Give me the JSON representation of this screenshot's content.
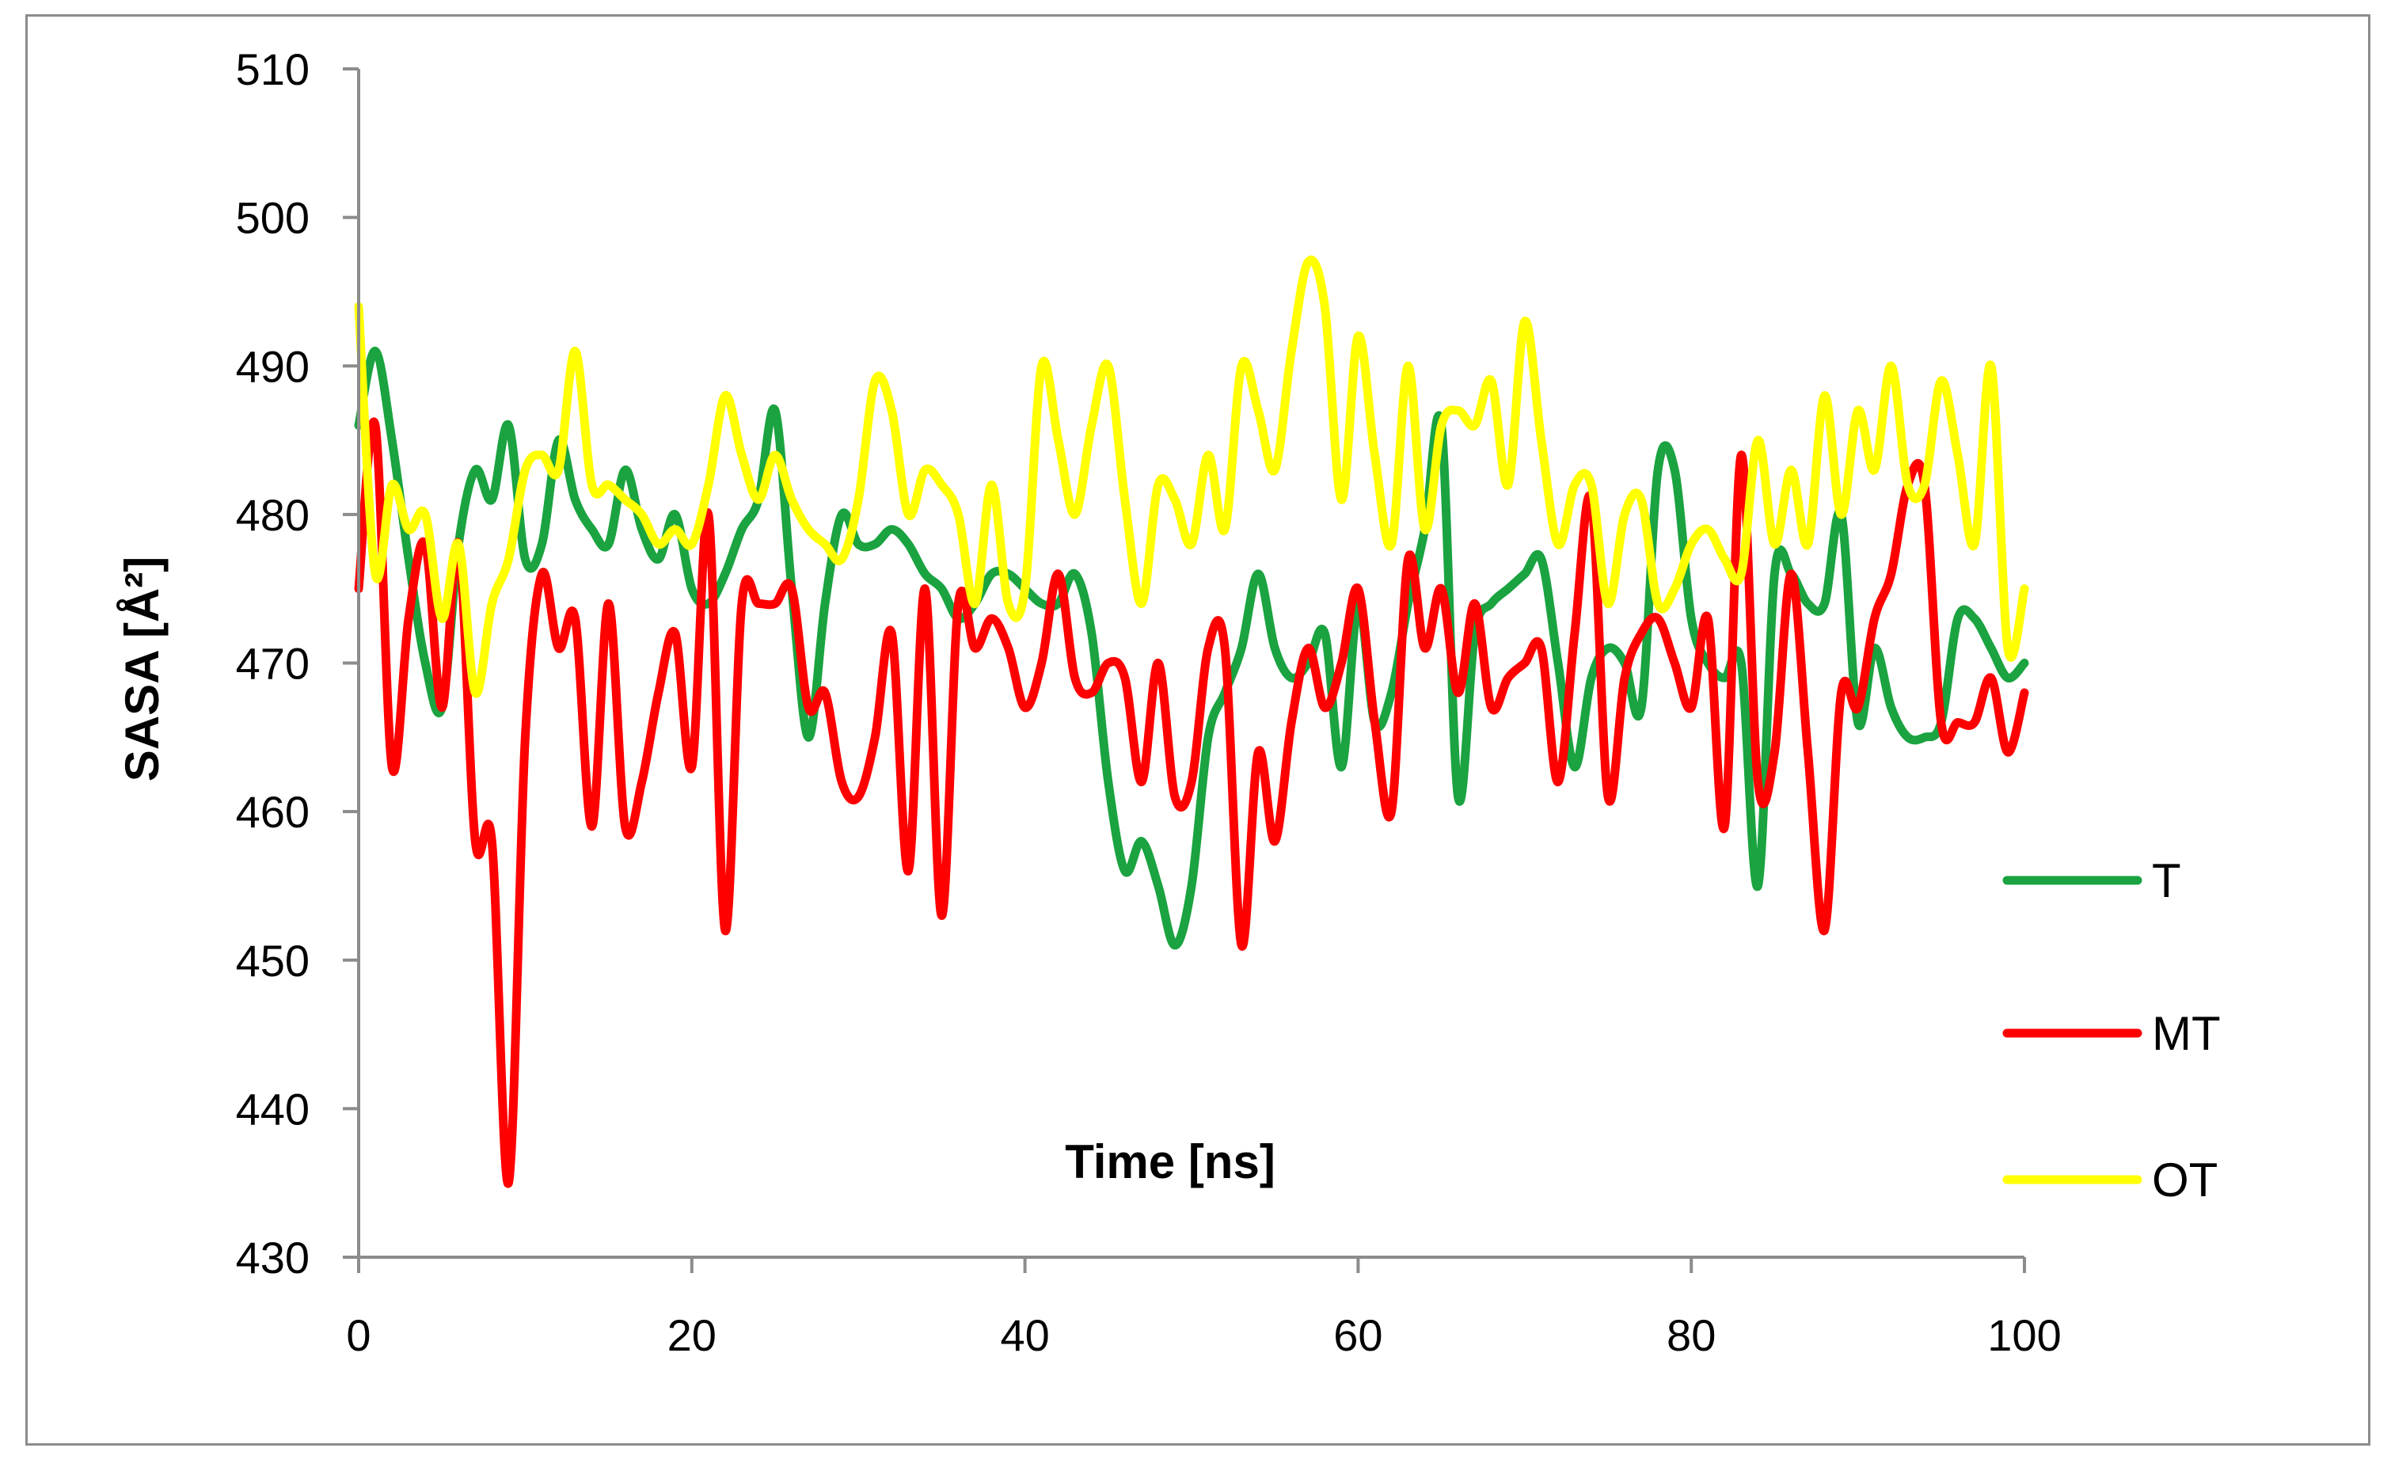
{
  "chart_data": {
    "type": "line",
    "title": "",
    "xlabel": "Time [ns]",
    "ylabel": "SASA [Å²]",
    "xlim": [
      0,
      100
    ],
    "ylim": [
      430,
      510
    ],
    "xticks": [
      0,
      20,
      40,
      60,
      80,
      100
    ],
    "yticks": [
      430,
      440,
      450,
      460,
      470,
      480,
      490,
      500,
      510
    ],
    "grid": false,
    "legend_position": "right",
    "series": [
      {
        "name": "T",
        "color": "#1aa340",
        "x": [
          0,
          1,
          2,
          3,
          4,
          5,
          6,
          7,
          8,
          9,
          10,
          11,
          12,
          13,
          14,
          15,
          16,
          17,
          18,
          19,
          20,
          21,
          22,
          23,
          24,
          25,
          26,
          27,
          28,
          29,
          30,
          31,
          32,
          33,
          34,
          35,
          36,
          37,
          38,
          39,
          40,
          41,
          42,
          43,
          44,
          45,
          46,
          47,
          48,
          49,
          50,
          51,
          52,
          53,
          54,
          55,
          56,
          57,
          58,
          59,
          60,
          61,
          62,
          63,
          64,
          65,
          66,
          67,
          68,
          69,
          70,
          71,
          72,
          73,
          74,
          75,
          76,
          77,
          78,
          79,
          80,
          81,
          82,
          83,
          84,
          85,
          86,
          87,
          88,
          89,
          90,
          91,
          92,
          93,
          94,
          95,
          96,
          97,
          98,
          99,
          100
        ],
        "values": [
          486,
          491,
          485,
          477,
          470,
          467,
          478,
          483,
          481,
          486,
          477,
          478,
          485,
          481,
          479,
          478,
          483,
          479,
          477,
          480,
          475,
          474,
          476,
          479,
          481,
          487,
          475,
          465,
          474,
          480,
          478,
          478,
          479,
          478,
          476,
          475,
          473,
          474,
          476,
          476,
          475,
          474,
          474,
          476,
          472,
          462,
          456,
          458,
          455,
          451,
          455,
          465,
          468,
          471,
          476,
          471,
          469,
          470,
          472,
          463,
          474,
          466,
          468,
          474,
          479,
          486,
          461,
          472,
          474,
          475,
          476,
          477,
          470,
          463,
          469,
          471,
          470,
          467,
          483,
          483,
          473,
          470,
          469,
          470,
          455,
          476,
          476,
          474,
          474,
          480,
          466,
          471,
          467,
          465,
          465,
          466,
          473,
          473,
          471,
          469,
          470
        ]
      },
      {
        "name": "MT",
        "color": "#ff0000",
        "x": [
          0,
          1,
          2,
          3,
          4,
          5,
          6,
          7,
          8,
          9,
          10,
          11,
          12,
          13,
          14,
          15,
          16,
          17,
          18,
          19,
          20,
          21,
          22,
          23,
          24,
          25,
          26,
          27,
          28,
          29,
          30,
          31,
          32,
          33,
          34,
          35,
          36,
          37,
          38,
          39,
          40,
          41,
          42,
          43,
          44,
          45,
          46,
          47,
          48,
          49,
          50,
          51,
          52,
          53,
          54,
          55,
          56,
          57,
          58,
          59,
          60,
          61,
          62,
          63,
          64,
          65,
          66,
          67,
          68,
          69,
          70,
          71,
          72,
          73,
          74,
          75,
          76,
          77,
          78,
          79,
          80,
          81,
          82,
          83,
          84,
          85,
          86,
          87,
          88,
          89,
          90,
          91,
          92,
          93,
          94,
          95,
          96,
          97,
          98,
          99,
          100
        ],
        "values": [
          475,
          486,
          463,
          473,
          478,
          467,
          478,
          458,
          458,
          435,
          465,
          476,
          471,
          473,
          459,
          474,
          459,
          462,
          468,
          472,
          463,
          480,
          452,
          474,
          474,
          474,
          475,
          467,
          468,
          462,
          461,
          465,
          472,
          456,
          475,
          453,
          474,
          471,
          473,
          471,
          467,
          470,
          476,
          469,
          468,
          470,
          469,
          462,
          470,
          461,
          462,
          471,
          471,
          451,
          464,
          458,
          466,
          471,
          467,
          470,
          475,
          466,
          460,
          477,
          471,
          475,
          468,
          474,
          467,
          469,
          470,
          471,
          462,
          472,
          481,
          461,
          469,
          472,
          473,
          470,
          467,
          473,
          459,
          484,
          462,
          464,
          476,
          464,
          452,
          468,
          467,
          473,
          476,
          482,
          482,
          466,
          466,
          466,
          469,
          464,
          468
        ]
      },
      {
        "name": "OT",
        "color": "#ffff00",
        "x": [
          0,
          1,
          2,
          3,
          4,
          5,
          6,
          7,
          8,
          9,
          10,
          11,
          12,
          13,
          14,
          15,
          16,
          17,
          18,
          19,
          20,
          21,
          22,
          23,
          24,
          25,
          26,
          27,
          28,
          29,
          30,
          31,
          32,
          33,
          34,
          35,
          36,
          37,
          38,
          39,
          40,
          41,
          42,
          43,
          44,
          45,
          46,
          47,
          48,
          49,
          50,
          51,
          52,
          53,
          54,
          55,
          56,
          57,
          58,
          59,
          60,
          61,
          62,
          63,
          64,
          65,
          66,
          67,
          68,
          69,
          70,
          71,
          72,
          73,
          74,
          75,
          76,
          77,
          78,
          79,
          80,
          81,
          82,
          83,
          84,
          85,
          86,
          87,
          88,
          89,
          90,
          91,
          92,
          93,
          94,
          95,
          96,
          97,
          98,
          99,
          100
        ],
        "values": [
          494,
          476,
          482,
          479,
          480,
          473,
          478,
          468,
          474,
          477,
          483,
          484,
          483,
          491,
          482,
          482,
          481,
          480,
          478,
          479,
          478,
          482,
          488,
          484,
          481,
          484,
          481,
          479,
          478,
          477,
          481,
          489,
          487,
          480,
          483,
          482,
          480,
          474,
          482,
          474,
          475,
          490,
          485,
          480,
          486,
          490,
          481,
          474,
          482,
          481,
          478,
          484,
          479,
          490,
          487,
          483,
          491,
          497,
          494,
          481,
          492,
          484,
          478,
          490,
          479,
          486,
          487,
          486,
          489,
          482,
          493,
          485,
          478,
          482,
          482,
          474,
          480,
          481,
          474,
          475,
          478,
          479,
          477,
          476,
          485,
          478,
          483,
          478,
          488,
          480,
          487,
          483,
          490,
          482,
          482,
          489,
          484,
          478,
          490,
          471,
          475
        ]
      }
    ]
  }
}
